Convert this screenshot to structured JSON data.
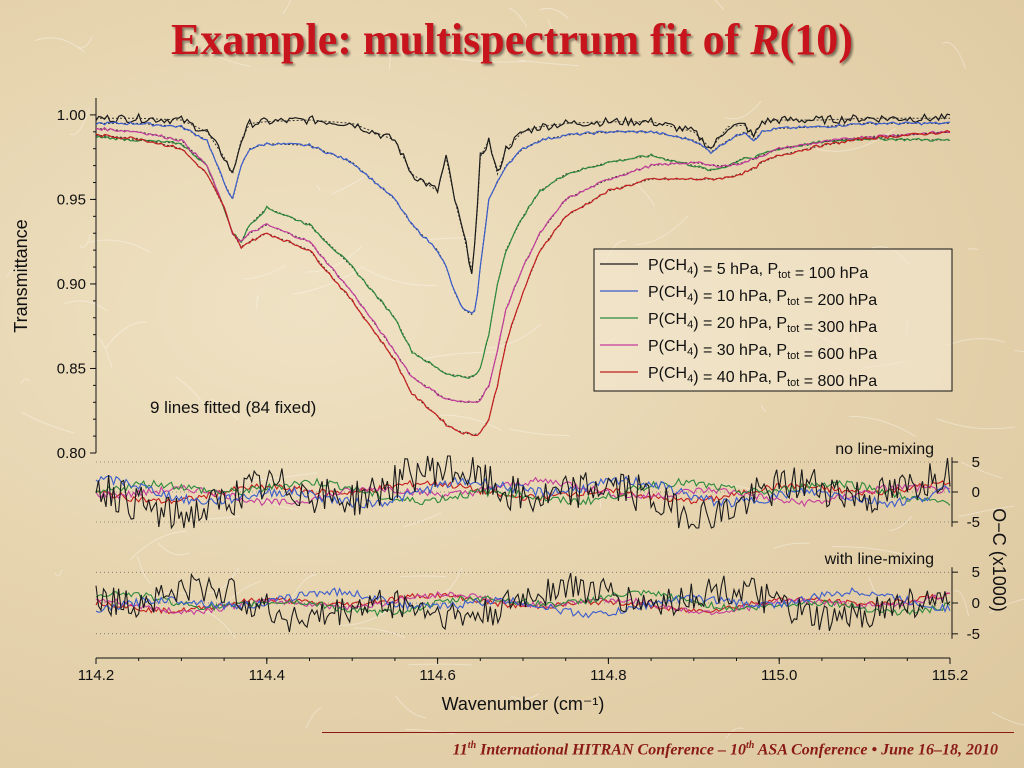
{
  "slide": {
    "title_prefix": "Example: multispectrum fit of ",
    "title_var": "R",
    "title_suffix": "(10)",
    "footer": {
      "n1": "11",
      "s1": "th",
      "t1": " International HITRAN Conference  – ",
      "n2": "10",
      "s2": "th",
      "t2": " ASA Conference • June 16–18, 2010"
    }
  },
  "colors": {
    "title": "#c8141c",
    "series": [
      "#1a1a1a",
      "#3a5ccc",
      "#2e8a3c",
      "#c43c9c",
      "#c41e1e"
    ]
  },
  "chart_data": [
    {
      "type": "line",
      "panel": "main",
      "xlabel": "Wavenumber (cm⁻¹)",
      "ylabel": "Transmittance",
      "xlim": [
        114.2,
        115.2
      ],
      "ylim": [
        0.8,
        1.01
      ],
      "xticks": [
        "114.2",
        "114.4",
        "114.6",
        "114.8",
        "115.0",
        "115.2"
      ],
      "yticks": [
        "1.00",
        "0.95",
        "0.90",
        "0.85",
        "0.80"
      ],
      "annotation": "9 lines fitted (84 fixed)",
      "legend_position": "right",
      "x": [
        114.2,
        114.25,
        114.3,
        114.33,
        114.35,
        114.36,
        114.37,
        114.38,
        114.4,
        114.45,
        114.5,
        114.55,
        114.57,
        114.6,
        114.61,
        114.62,
        114.63,
        114.64,
        114.645,
        114.65,
        114.66,
        114.67,
        114.68,
        114.7,
        114.72,
        114.75,
        114.8,
        114.85,
        114.9,
        114.92,
        114.94,
        114.96,
        114.97,
        114.98,
        115.0,
        115.05,
        115.1,
        115.2
      ],
      "series": [
        {
          "name": "P(CH₄) = 5 hPa, Pₜₒₜ = 100 hPa",
          "label": {
            "a": "P(CH",
            "sub1": "4",
            "b": ") = 5 hPa, P",
            "sub2": "tot",
            "c": " = 100 hPa"
          },
          "values": [
            0.998,
            0.998,
            0.997,
            0.99,
            0.975,
            0.965,
            0.985,
            0.995,
            0.996,
            0.997,
            0.995,
            0.985,
            0.965,
            0.955,
            0.975,
            0.95,
            0.93,
            0.908,
            0.93,
            0.975,
            0.985,
            0.965,
            0.98,
            0.99,
            0.993,
            0.995,
            0.996,
            0.996,
            0.99,
            0.98,
            0.993,
            0.994,
            0.987,
            0.996,
            0.997,
            0.997,
            0.998,
            0.998
          ]
        },
        {
          "name": "P(CH₄) = 10 hPa, Pₜₒₜ = 200 hPa",
          "label": {
            "a": "P(CH",
            "sub1": "4",
            "b": ") = 10 hPa, P",
            "sub2": "tot",
            "c": " = 200 hPa"
          },
          "values": [
            0.995,
            0.995,
            0.993,
            0.985,
            0.96,
            0.95,
            0.97,
            0.98,
            0.983,
            0.982,
            0.972,
            0.95,
            0.935,
            0.92,
            0.91,
            0.895,
            0.885,
            0.882,
            0.886,
            0.91,
            0.95,
            0.96,
            0.97,
            0.98,
            0.985,
            0.988,
            0.99,
            0.99,
            0.985,
            0.978,
            0.985,
            0.99,
            0.985,
            0.99,
            0.992,
            0.993,
            0.995,
            0.995
          ]
        },
        {
          "name": "P(CH₄) = 20 hPa, Pₜₒₜ = 300 hPa",
          "label": {
            "a": "P(CH",
            "sub1": "4",
            "b": ") = 20 hPa, P",
            "sub2": "tot",
            "c": " = 300 hPa"
          },
          "values": [
            0.987,
            0.985,
            0.983,
            0.97,
            0.945,
            0.93,
            0.925,
            0.935,
            0.945,
            0.935,
            0.91,
            0.88,
            0.86,
            0.85,
            0.847,
            0.846,
            0.845,
            0.845,
            0.846,
            0.85,
            0.87,
            0.9,
            0.92,
            0.94,
            0.955,
            0.965,
            0.972,
            0.976,
            0.97,
            0.967,
            0.97,
            0.975,
            0.974,
            0.977,
            0.98,
            0.984,
            0.986,
            0.985
          ]
        },
        {
          "name": "P(CH₄) = 30 hPa, Pₜₒₜ = 600 hPa",
          "label": {
            "a": "P(CH",
            "sub1": "4",
            "b": ") = 30 hPa, P",
            "sub2": "tot",
            "c": " = 600 hPa"
          },
          "values": [
            0.992,
            0.99,
            0.985,
            0.97,
            0.945,
            0.93,
            0.925,
            0.93,
            0.935,
            0.925,
            0.895,
            0.86,
            0.845,
            0.835,
            0.832,
            0.831,
            0.83,
            0.83,
            0.83,
            0.832,
            0.84,
            0.86,
            0.885,
            0.91,
            0.93,
            0.95,
            0.962,
            0.97,
            0.972,
            0.97,
            0.97,
            0.972,
            0.974,
            0.976,
            0.98,
            0.984,
            0.987,
            0.99
          ]
        },
        {
          "name": "P(CH₄) = 40 hPa, Pₜₒₜ = 800 hPa",
          "label": {
            "a": "P(CH",
            "sub1": "4",
            "b": ") = 40 hPa, P",
            "sub2": "tot",
            "c": " = 800 hPa"
          },
          "values": [
            0.988,
            0.986,
            0.98,
            0.965,
            0.945,
            0.93,
            0.922,
            0.925,
            0.93,
            0.92,
            0.89,
            0.855,
            0.835,
            0.822,
            0.817,
            0.814,
            0.812,
            0.811,
            0.811,
            0.812,
            0.82,
            0.84,
            0.865,
            0.895,
            0.92,
            0.94,
            0.955,
            0.962,
            0.962,
            0.962,
            0.963,
            0.966,
            0.968,
            0.972,
            0.976,
            0.982,
            0.986,
            0.99
          ]
        }
      ]
    },
    {
      "type": "line",
      "panel": "residual",
      "title": "no line-mixing",
      "ylabel": "O−C (x1000)",
      "ylim": [
        -6,
        6
      ],
      "yticks": [
        "5",
        "0",
        "-5"
      ],
      "note": "noisy residuals of all five series, amplitude about ±5"
    },
    {
      "type": "line",
      "panel": "residual",
      "title": "with line-mixing",
      "ylabel": "O−C (x1000)",
      "ylim": [
        -6,
        6
      ],
      "yticks": [
        "5",
        "0",
        "-5"
      ],
      "note": "noisy residuals of all five series, amplitude about ±4"
    }
  ]
}
